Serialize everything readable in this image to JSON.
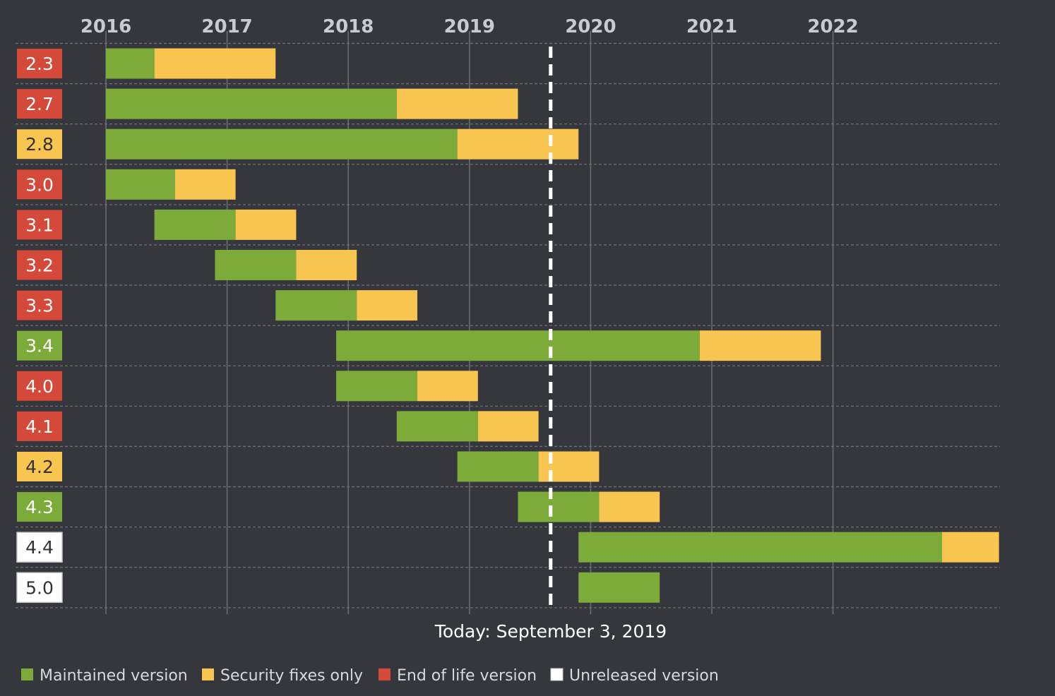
{
  "chart_data": {
    "type": "gantt",
    "x_unit": "year",
    "x_range": [
      2016,
      2023.37
    ],
    "years": [
      2016,
      2017,
      2018,
      2019,
      2020,
      2021,
      2022
    ],
    "today": {
      "value": 2019.67,
      "label": "Today: September 3, 2019"
    },
    "status_colors": {
      "maintained": "#7cab3a",
      "security": "#f7c550",
      "eol": "#d44939",
      "unreleased": "#ffffff"
    },
    "versions": [
      {
        "label": "2.3",
        "status": "eol",
        "start": 2016.0,
        "maintained_until": 2016.4,
        "security_until": 2017.4
      },
      {
        "label": "2.7",
        "status": "eol",
        "start": 2016.0,
        "maintained_until": 2018.4,
        "security_until": 2019.4
      },
      {
        "label": "2.8",
        "status": "security",
        "start": 2016.0,
        "maintained_until": 2018.9,
        "security_until": 2019.9
      },
      {
        "label": "3.0",
        "status": "eol",
        "start": 2016.0,
        "maintained_until": 2016.57,
        "security_until": 2017.07
      },
      {
        "label": "3.1",
        "status": "eol",
        "start": 2016.4,
        "maintained_until": 2017.07,
        "security_until": 2017.57
      },
      {
        "label": "3.2",
        "status": "eol",
        "start": 2016.9,
        "maintained_until": 2017.57,
        "security_until": 2018.07
      },
      {
        "label": "3.3",
        "status": "eol",
        "start": 2017.4,
        "maintained_until": 2018.07,
        "security_until": 2018.57
      },
      {
        "label": "3.4",
        "status": "maintained",
        "start": 2017.9,
        "maintained_until": 2020.9,
        "security_until": 2021.9
      },
      {
        "label": "4.0",
        "status": "eol",
        "start": 2017.9,
        "maintained_until": 2018.57,
        "security_until": 2019.07
      },
      {
        "label": "4.1",
        "status": "eol",
        "start": 2018.4,
        "maintained_until": 2019.07,
        "security_until": 2019.57
      },
      {
        "label": "4.2",
        "status": "security",
        "start": 2018.9,
        "maintained_until": 2019.57,
        "security_until": 2020.07
      },
      {
        "label": "4.3",
        "status": "maintained",
        "start": 2019.4,
        "maintained_until": 2020.07,
        "security_until": 2020.57
      },
      {
        "label": "4.4",
        "status": "unreleased",
        "start": 2019.9,
        "maintained_until": 2022.9,
        "security_until": 2023.37
      },
      {
        "label": "5.0",
        "status": "unreleased",
        "start": 2019.9,
        "maintained_until": 2020.57,
        "security_until": 2020.57
      }
    ],
    "legend": [
      {
        "status": "maintained",
        "label": "Maintained version"
      },
      {
        "status": "security",
        "label": "Security fixes only"
      },
      {
        "status": "eol",
        "label": "End of life version"
      },
      {
        "status": "unreleased",
        "label": "Unreleased version"
      }
    ],
    "colors": {
      "background": "#35373c",
      "grid": "#6d6f74",
      "year_label": "#c9cbcf",
      "today_line": "#ffffff"
    }
  }
}
